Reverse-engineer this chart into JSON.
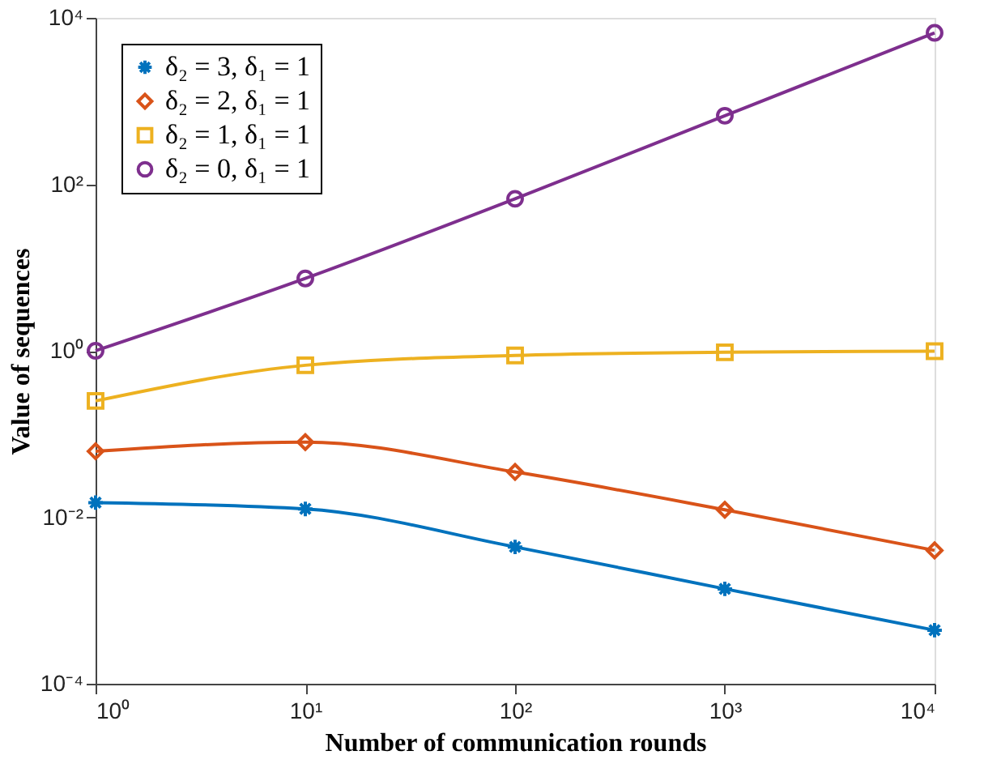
{
  "chart_data": {
    "type": "line",
    "xlabel": "Number of communication rounds",
    "ylabel": "Value of sequences",
    "x": [
      1,
      10,
      100,
      1000,
      10000
    ],
    "series": [
      {
        "name": "δ₂ = 3, δ₁ = 1",
        "color": "#0072bd",
        "marker": "cross",
        "values": [
          0.015,
          0.0126,
          0.0044,
          0.00138,
          0.00044
        ]
      },
      {
        "name": "δ₂ = 2, δ₁ = 1",
        "color": "#d95319",
        "marker": "diamond",
        "values": [
          0.062,
          0.08,
          0.035,
          0.0123,
          0.004
        ]
      },
      {
        "name": "δ₂ = 1, δ₁ = 1",
        "color": "#edb120",
        "marker": "square",
        "values": [
          0.25,
          0.67,
          0.88,
          0.96,
          0.99
        ]
      },
      {
        "name": "δ₂ = 0, δ₁ = 1",
        "color": "#7e2f8e",
        "marker": "circle",
        "values": [
          1,
          7.4,
          67,
          667,
          6600
        ]
      }
    ],
    "log": "xy",
    "xlim": [
      1,
      10000
    ],
    "ylim": [
      0.0001,
      10000
    ],
    "xticks": [
      {
        "value": 1,
        "label": "10⁰"
      },
      {
        "value": 10,
        "label": "10¹"
      },
      {
        "value": 100,
        "label": "10²"
      },
      {
        "value": 1000,
        "label": "10³"
      },
      {
        "value": 10000,
        "label": "10⁴"
      }
    ],
    "yticks": [
      {
        "value": 0.0001,
        "label": "10⁻⁴"
      },
      {
        "value": 0.01,
        "label": "10⁻²"
      },
      {
        "value": 1,
        "label": "10⁰"
      },
      {
        "value": 100,
        "label": "10²"
      },
      {
        "value": 10000,
        "label": "10⁴"
      }
    ],
    "grid": false,
    "legend": "top left",
    "line_style": "solid"
  }
}
